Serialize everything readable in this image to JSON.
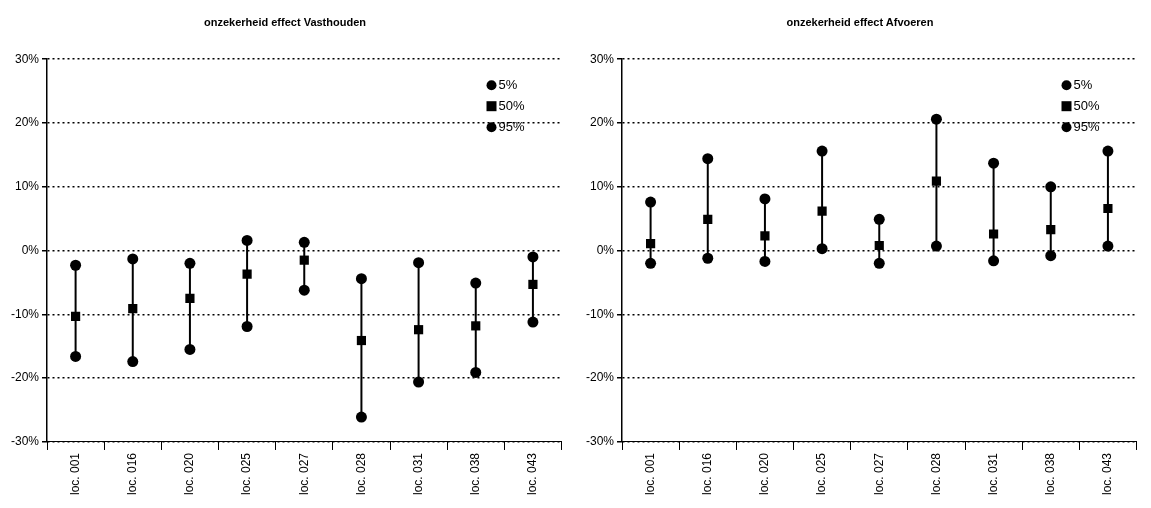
{
  "chart_data": [
    {
      "type": "scatter",
      "title": "onzekerheid effect Vasthouden",
      "categories": [
        "loc. 001",
        "loc. 016",
        "loc. 020",
        "loc. 025",
        "loc. 027",
        "loc. 028",
        "loc. 031",
        "loc. 038",
        "loc. 043"
      ],
      "series": [
        {
          "name": "5%",
          "color": "#000000",
          "marker": "circle",
          "values": [
            -16.6,
            -17.4,
            -15.5,
            -11.9,
            -6.2,
            -26.1,
            -20.6,
            -19.1,
            -11.2
          ]
        },
        {
          "name": "50%",
          "color": "#000000",
          "marker": "square",
          "values": [
            -10.3,
            -9.1,
            -7.5,
            -3.7,
            -1.5,
            -14.1,
            -12.4,
            -11.8,
            -5.3
          ]
        },
        {
          "name": "95%",
          "color": "#000000",
          "marker": "circle",
          "values": [
            -2.3,
            -1.3,
            -2.0,
            1.6,
            1.3,
            -4.4,
            -1.9,
            -5.1,
            -1.0
          ]
        }
      ],
      "ylim": [
        -30,
        30
      ],
      "yticks": [
        {
          "value": -30,
          "label": "-30%"
        },
        {
          "value": -20,
          "label": "-20%"
        },
        {
          "value": -10,
          "label": "-10%"
        },
        {
          "value": 0,
          "label": "0%"
        },
        {
          "value": 10,
          "label": "10%"
        },
        {
          "value": 20,
          "label": "20%"
        },
        {
          "value": 30,
          "label": "30%"
        }
      ],
      "grid": "y",
      "legend": "top right"
    },
    {
      "type": "scatter",
      "title": "onzekerheid effect Afvoeren",
      "categories": [
        "loc. 001",
        "loc. 016",
        "loc. 020",
        "loc. 025",
        "loc. 027",
        "loc. 028",
        "loc. 031",
        "loc. 038",
        "loc. 043"
      ],
      "series": [
        {
          "name": "5%",
          "color": "#000000",
          "marker": "circle",
          "values": [
            -2.0,
            -1.2,
            -1.7,
            0.3,
            -2.0,
            0.7,
            -1.6,
            -0.8,
            0.7
          ]
        },
        {
          "name": "50%",
          "color": "#000000",
          "marker": "square",
          "values": [
            1.1,
            4.9,
            2.3,
            6.2,
            0.8,
            10.9,
            2.6,
            3.3,
            6.6
          ]
        },
        {
          "name": "95%",
          "color": "#000000",
          "marker": "circle",
          "values": [
            7.6,
            14.4,
            8.1,
            15.6,
            4.9,
            20.6,
            13.7,
            10.0,
            15.6
          ]
        }
      ],
      "ylim": [
        -30,
        30
      ],
      "yticks": [
        {
          "value": -30,
          "label": "-30%"
        },
        {
          "value": -20,
          "label": "-20%"
        },
        {
          "value": -10,
          "label": "-10%"
        },
        {
          "value": 0,
          "label": "0%"
        },
        {
          "value": 10,
          "label": "10%"
        },
        {
          "value": 20,
          "label": "20%"
        },
        {
          "value": 30,
          "label": "30%"
        }
      ],
      "grid": "y",
      "legend": "top right"
    }
  ]
}
